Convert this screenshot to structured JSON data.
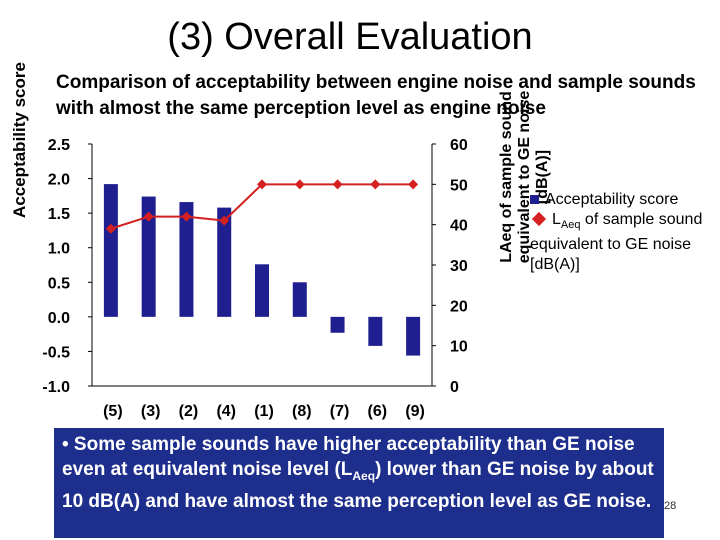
{
  "slide": {
    "title": "(3) Overall Evaluation",
    "subtitle": "Comparison of acceptability between engine noise and sample sounds with almost the same perception level as engine noise",
    "page_number": "28"
  },
  "legend": {
    "bar_label": "Acceptability score",
    "line_label_prefix": "L",
    "line_label_sub": "Aeq",
    "line_label_suffix": " of sample sound equivalent to GE noise [dB(A)]"
  },
  "note": {
    "part1": "• Some sample sounds have higher acceptability than GE noise even at equivalent noise level (L",
    "sub": "Aeq",
    "part2": ") lower than GE noise by about 10 dB(A) and have almost the same perception level as GE noise."
  },
  "chart_data": {
    "type": "bar",
    "categories": [
      "(5)",
      "(3)",
      "(2)",
      "(4)",
      "(1)",
      "(8)",
      "(7)",
      "(6)",
      "(9)"
    ],
    "series": [
      {
        "name": "Acceptability score",
        "type": "bar",
        "axis": "left",
        "color": "#1f1f8f",
        "values": [
          1.92,
          1.74,
          1.66,
          1.58,
          0.76,
          0.5,
          -0.23,
          -0.42,
          -0.56
        ]
      },
      {
        "name": "LAeq of sample sound equivalent to GE noise [dB(A)]",
        "type": "line",
        "axis": "right",
        "color": "#d42020",
        "values": [
          39,
          42,
          42,
          41,
          50,
          50,
          50,
          50,
          50
        ]
      }
    ],
    "ylabel": "Acceptability score",
    "y2label": "LAeq of sample sound equivalent to GE noise [dB(A)]",
    "ylim": [
      -1.0,
      2.5
    ],
    "y2lim": [
      0,
      60
    ],
    "yticks": [
      "2.5",
      "2.0",
      "1.5",
      "1.0",
      "0.5",
      "0.0",
      "-0.5",
      "-1.0"
    ],
    "y2ticks": [
      "60",
      "50",
      "40",
      "30",
      "20",
      "10",
      "0"
    ]
  }
}
